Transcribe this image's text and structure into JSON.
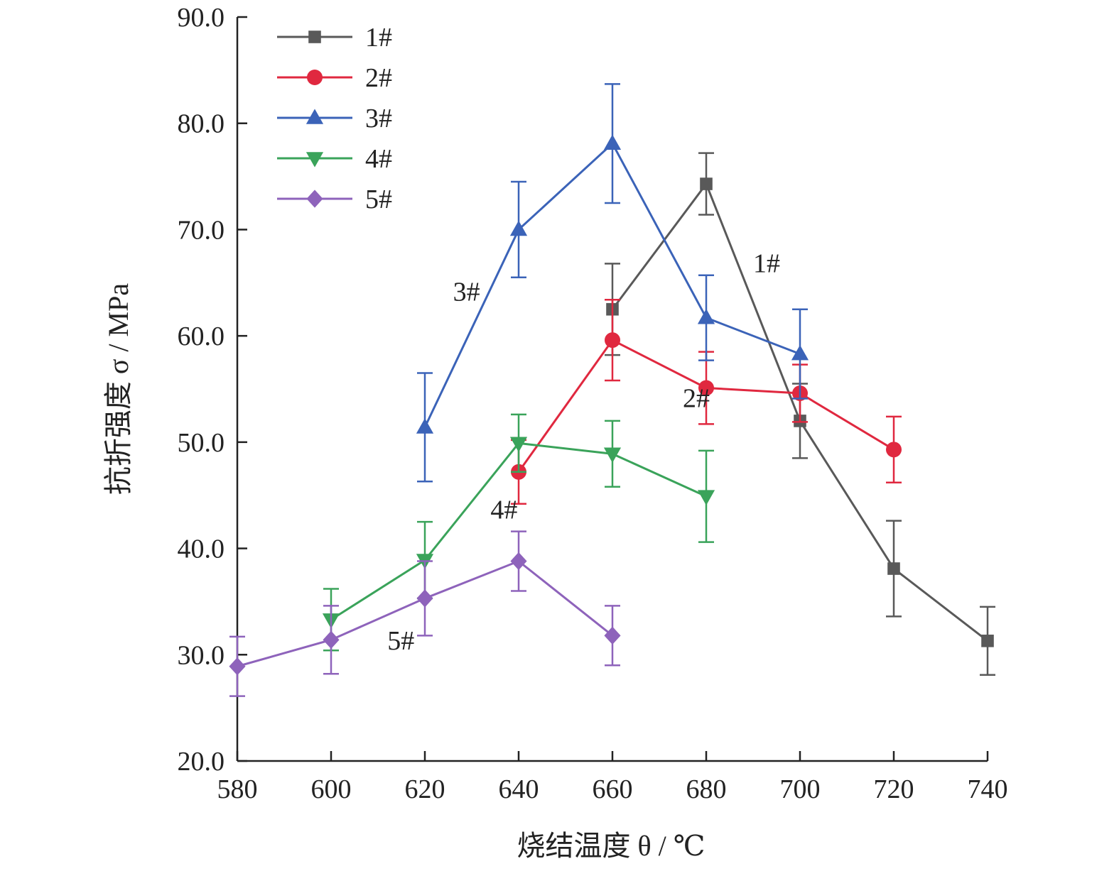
{
  "chart_data": {
    "type": "line",
    "xlabel": "烧结温度 θ / ℃",
    "ylabel": "抗折强度 σ / MPa",
    "xlim": [
      580,
      740
    ],
    "ylim": [
      20.0,
      90.0
    ],
    "x_ticks": [
      "580",
      "600",
      "620",
      "640",
      "660",
      "680",
      "700",
      "720",
      "740"
    ],
    "y_ticks": [
      "20.0",
      "30.0",
      "40.0",
      "50.0",
      "60.0",
      "70.0",
      "80.0",
      "90.0"
    ],
    "legend_position": "top-left",
    "series": [
      {
        "name": "1#",
        "color": "#595959",
        "marker": "square",
        "points": [
          {
            "x": 660,
            "y": 62.5,
            "err": 4.3
          },
          {
            "x": 680,
            "y": 74.3,
            "err": 2.9
          },
          {
            "x": 700,
            "y": 52.0,
            "err": 3.5
          },
          {
            "x": 720,
            "y": 38.1,
            "err": 4.5
          },
          {
            "x": 740,
            "y": 31.3,
            "err": 3.2
          }
        ]
      },
      {
        "name": "2#",
        "color": "#e0283f",
        "marker": "circle",
        "points": [
          {
            "x": 640,
            "y": 47.2,
            "err": 3.0
          },
          {
            "x": 660,
            "y": 59.6,
            "err": 3.8
          },
          {
            "x": 680,
            "y": 55.1,
            "err": 3.4
          },
          {
            "x": 700,
            "y": 54.6,
            "err": 2.7
          },
          {
            "x": 720,
            "y": 49.3,
            "err": 3.1
          }
        ]
      },
      {
        "name": "3#",
        "color": "#3b63b8",
        "marker": "triangle-up",
        "points": [
          {
            "x": 620,
            "y": 51.4,
            "err": 5.1
          },
          {
            "x": 640,
            "y": 70.0,
            "err": 4.5
          },
          {
            "x": 660,
            "y": 78.1,
            "err": 5.6
          },
          {
            "x": 680,
            "y": 61.7,
            "err": 4.0
          },
          {
            "x": 700,
            "y": 58.3,
            "err": 4.2
          }
        ]
      },
      {
        "name": "4#",
        "color": "#3aa35a",
        "marker": "triangle-down",
        "points": [
          {
            "x": 600,
            "y": 33.3,
            "err": 2.9
          },
          {
            "x": 620,
            "y": 38.9,
            "err": 3.6
          },
          {
            "x": 640,
            "y": 49.9,
            "err": 2.7
          },
          {
            "x": 660,
            "y": 48.9,
            "err": 3.1
          },
          {
            "x": 680,
            "y": 44.9,
            "err": 4.3
          }
        ]
      },
      {
        "name": "5#",
        "color": "#8e63bb",
        "marker": "diamond",
        "points": [
          {
            "x": 580,
            "y": 28.9,
            "err": 2.8
          },
          {
            "x": 600,
            "y": 31.4,
            "err": 3.2
          },
          {
            "x": 620,
            "y": 35.3,
            "err": 3.5
          },
          {
            "x": 640,
            "y": 38.8,
            "err": 2.8
          },
          {
            "x": 660,
            "y": 31.8,
            "err": 2.8
          }
        ]
      }
    ],
    "annotations": [
      {
        "text": "1#",
        "x": 690,
        "y": 66.0
      },
      {
        "text": "2#",
        "x": 675,
        "y": 53.3
      },
      {
        "text": "3#",
        "x": 626,
        "y": 63.3
      },
      {
        "text": "4#",
        "x": 634,
        "y": 42.8
      },
      {
        "text": "5#",
        "x": 612,
        "y": 30.5
      }
    ]
  }
}
